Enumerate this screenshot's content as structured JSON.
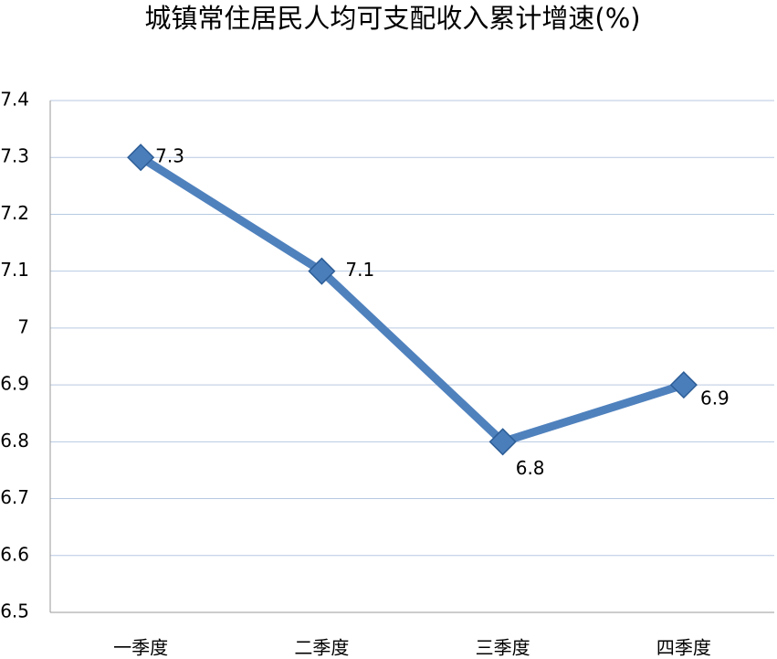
{
  "chart_data": {
    "type": "line",
    "title": "城镇常住居民人均可支配收入累计增速(%)",
    "categories": [
      "一季度",
      "二季度",
      "三季度",
      "四季度"
    ],
    "values": [
      7.3,
      7.1,
      6.8,
      6.9
    ],
    "color": "#4f81bd",
    "ylim": [
      6.5,
      7.4
    ],
    "yticks": [
      6.5,
      6.6,
      6.7,
      6.8,
      6.9,
      7,
      7.1,
      7.2,
      7.3,
      7.4
    ],
    "grid": true
  }
}
